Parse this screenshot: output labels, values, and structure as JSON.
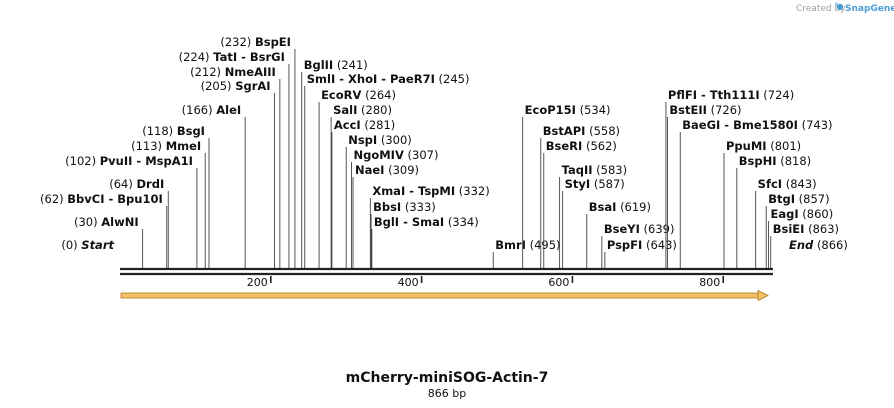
{
  "credit": "Created by",
  "brand": "SnapGene",
  "title": "mCherry-miniSOG-Actin-7",
  "length_label": "866 bp",
  "sequence_length": 866,
  "ticks": [
    200,
    400,
    600,
    800
  ],
  "sites": [
    {
      "label": "Start",
      "pos": 0,
      "pos_label": "(0)",
      "side": "right",
      "special": true
    },
    {
      "label": "AlwNI",
      "pos": 30,
      "pos_label": "(30)",
      "side": "right"
    },
    {
      "label": "BbvCI",
      "label2": "Bpu10I",
      "pos": 62,
      "pos_label": "(62)",
      "side": "right"
    },
    {
      "label": "DrdI",
      "pos": 64,
      "pos_label": "(64)",
      "side": "right"
    },
    {
      "label": "PvuII",
      "label2": "MspA1I",
      "pos": 102,
      "pos_label": "(102)",
      "side": "right"
    },
    {
      "label": "MmeI",
      "pos": 113,
      "pos_label": "(113)",
      "side": "right"
    },
    {
      "label": "BsgI",
      "pos": 118,
      "pos_label": "(118)",
      "side": "right"
    },
    {
      "label": "AleI",
      "pos": 166,
      "pos_label": "(166)",
      "side": "right"
    },
    {
      "label": "SgrAI",
      "pos": 205,
      "pos_label": "(205)",
      "side": "right"
    },
    {
      "label": "NmeAIII",
      "pos": 212,
      "pos_label": "(212)",
      "side": "right"
    },
    {
      "label": "TatI",
      "label2": "BsrGI",
      "pos": 224,
      "pos_label": "(224)",
      "side": "right"
    },
    {
      "label": "BspEI",
      "pos": 232,
      "pos_label": "(232)",
      "side": "right"
    },
    {
      "label": "BglII",
      "pos": 241,
      "pos_label": "(241)",
      "side": "left"
    },
    {
      "label": "SmlI",
      "label2": "XhoI",
      "label3": "PaeR7I",
      "pos": 245,
      "pos_label": "(245)",
      "side": "left"
    },
    {
      "label": "EcoRV",
      "pos": 264,
      "pos_label": "(264)",
      "side": "left"
    },
    {
      "label": "SalI",
      "pos": 280,
      "pos_label": "(280)",
      "side": "left"
    },
    {
      "label": "AccI",
      "pos": 281,
      "pos_label": "(281)",
      "side": "left"
    },
    {
      "label": "NspI",
      "pos": 300,
      "pos_label": "(300)",
      "side": "left"
    },
    {
      "label": "NgoMIV",
      "pos": 307,
      "pos_label": "(307)",
      "side": "left"
    },
    {
      "label": "NaeI",
      "pos": 309,
      "pos_label": "(309)",
      "side": "left"
    },
    {
      "label": "XmaI",
      "label2": "TspMI",
      "pos": 332,
      "pos_label": "(332)",
      "side": "left"
    },
    {
      "label": "BbsI",
      "pos": 333,
      "pos_label": "(333)",
      "side": "left"
    },
    {
      "label": "BglI",
      "label2": "SmaI",
      "pos": 334,
      "pos_label": "(334)",
      "side": "left"
    },
    {
      "label": "BmrI",
      "pos": 495,
      "pos_label": "(495)",
      "side": "left"
    },
    {
      "label": "EcoP15I",
      "pos": 534,
      "pos_label": "(534)",
      "side": "left"
    },
    {
      "label": "BstAPI",
      "pos": 558,
      "pos_label": "(558)",
      "side": "left"
    },
    {
      "label": "BseRI",
      "pos": 562,
      "pos_label": "(562)",
      "side": "left"
    },
    {
      "label": "TaqII",
      "pos": 583,
      "pos_label": "(583)",
      "side": "left"
    },
    {
      "label": "StyI",
      "pos": 587,
      "pos_label": "(587)",
      "side": "left"
    },
    {
      "label": "BsaI",
      "pos": 619,
      "pos_label": "(619)",
      "side": "left"
    },
    {
      "label": "BseYI",
      "pos": 639,
      "pos_label": "(639)",
      "side": "left"
    },
    {
      "label": "PspFI",
      "pos": 643,
      "pos_label": "(643)",
      "side": "left"
    },
    {
      "label": "PflFI",
      "label2": "Tth111I",
      "pos": 724,
      "pos_label": "(724)",
      "side": "left"
    },
    {
      "label": "BstEII",
      "pos": 726,
      "pos_label": "(726)",
      "side": "left"
    },
    {
      "label": "BaeGI",
      "label2": "Bme1580I",
      "pos": 743,
      "pos_label": "(743)",
      "side": "left"
    },
    {
      "label": "PpuMI",
      "pos": 801,
      "pos_label": "(801)",
      "side": "left"
    },
    {
      "label": "BspHI",
      "pos": 818,
      "pos_label": "(818)",
      "side": "left"
    },
    {
      "label": "SfcI",
      "pos": 843,
      "pos_label": "(843)",
      "side": "left"
    },
    {
      "label": "BtgI",
      "pos": 857,
      "pos_label": "(857)",
      "side": "left"
    },
    {
      "label": "EagI",
      "pos": 860,
      "pos_label": "(860)",
      "side": "left"
    },
    {
      "label": "BsiEI",
      "pos": 863,
      "pos_label": "(863)",
      "side": "left"
    },
    {
      "label": "End",
      "pos": 866,
      "pos_label": "(866)",
      "side": "left",
      "special": true
    }
  ],
  "colors": {
    "backbone": "#222222",
    "feature_fill": "#f5c06a",
    "feature_stroke": "#b07a1e",
    "brand": "#4b9fd5"
  }
}
